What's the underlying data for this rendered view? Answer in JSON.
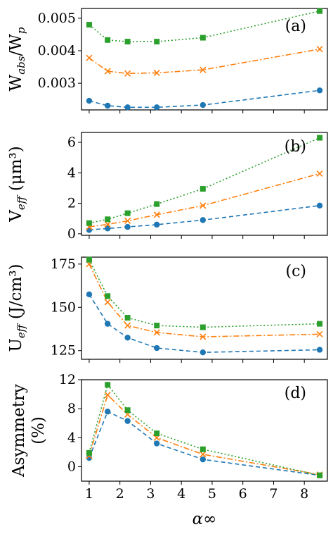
{
  "chart_data": [
    {
      "type": "line",
      "panel_label": "(a)",
      "ylabel": {
        "main": "W",
        "sub1": "abs",
        "mid": "/W",
        "sub2": "p",
        "tail": ""
      },
      "xlim": [
        0.75,
        8.75
      ],
      "ylim": [
        0.00218,
        0.0053
      ],
      "yticks": [
        0.003,
        0.004,
        0.005
      ],
      "ytick_labels": [
        "0.003",
        "0.004",
        "0.005"
      ],
      "xticks": [
        1,
        2,
        3,
        4,
        5,
        6,
        7,
        8
      ],
      "x": [
        1,
        1.6,
        2.25,
        3.2,
        4.7,
        8.5
      ],
      "series": [
        {
          "color": "#1f77b4",
          "marker": "circle",
          "dash": "6,4",
          "values": [
            0.00246,
            0.00231,
            0.00226,
            0.00226,
            0.00233,
            0.00278
          ]
        },
        {
          "color": "#ff7f0e",
          "marker": "x",
          "dash": "8,3,2,3",
          "values": [
            0.00378,
            0.00337,
            0.0033,
            0.00332,
            0.00341,
            0.00405
          ]
        },
        {
          "color": "#2ca02c",
          "marker": "square",
          "dash": "2,3",
          "values": [
            0.0048,
            0.00433,
            0.00428,
            0.00428,
            0.0044,
            0.00522
          ]
        }
      ]
    },
    {
      "type": "line",
      "panel_label": "(b)",
      "ylabel": {
        "main": "V",
        "sub1": "eff",
        "mid": "",
        "sub2": "",
        "tail": " (μm³)"
      },
      "xlim": [
        0.75,
        8.75
      ],
      "ylim": [
        -0.1,
        6.65
      ],
      "yticks": [
        0,
        2,
        4,
        6
      ],
      "ytick_labels": [
        "0",
        "2",
        "4",
        "6"
      ],
      "xticks": [
        1,
        2,
        3,
        4,
        5,
        6,
        7,
        8
      ],
      "x": [
        1,
        1.6,
        2.25,
        3.2,
        4.7,
        8.5
      ],
      "series": [
        {
          "color": "#1f77b4",
          "marker": "circle",
          "dash": "6,4",
          "values": [
            0.25,
            0.35,
            0.45,
            0.6,
            0.9,
            1.85
          ]
        },
        {
          "color": "#ff7f0e",
          "marker": "x",
          "dash": "8,3,2,3",
          "values": [
            0.45,
            0.62,
            0.85,
            1.25,
            1.85,
            3.95
          ]
        },
        {
          "color": "#2ca02c",
          "marker": "square",
          "dash": "2,3",
          "values": [
            0.7,
            0.95,
            1.35,
            1.95,
            2.95,
            6.3
          ]
        }
      ]
    },
    {
      "type": "line",
      "panel_label": "(c)",
      "ylabel": {
        "main": "U",
        "sub1": "eff",
        "mid": "",
        "sub2": "",
        "tail": " (J/cm³)"
      },
      "xlim": [
        0.75,
        8.75
      ],
      "ylim": [
        120,
        179
      ],
      "yticks": [
        125,
        150,
        175
      ],
      "ytick_labels": [
        "125",
        "150",
        "175"
      ],
      "xticks": [
        1,
        2,
        3,
        4,
        5,
        6,
        7,
        8
      ],
      "x": [
        1,
        1.6,
        2.25,
        3.2,
        4.7,
        8.5
      ],
      "series": [
        {
          "color": "#1f77b4",
          "marker": "circle",
          "dash": "6,4",
          "values": [
            157.5,
            140.5,
            132.5,
            126.5,
            124,
            125.5
          ]
        },
        {
          "color": "#ff7f0e",
          "marker": "x",
          "dash": "8,3,2,3",
          "values": [
            175,
            153,
            139.5,
            135.5,
            133,
            134.5
          ]
        },
        {
          "color": "#2ca02c",
          "marker": "square",
          "dash": "2,3",
          "values": [
            177.5,
            156.5,
            144,
            139.5,
            138.5,
            140.5
          ]
        }
      ]
    },
    {
      "type": "line",
      "panel_label": "(d)",
      "ylabel": {
        "line1": "Asymmetry",
        "line2": "(%)"
      },
      "xlabel": "α∞",
      "xlim": [
        0.75,
        8.75
      ],
      "ylim": [
        -2,
        12
      ],
      "yticks": [
        0,
        4,
        8,
        12
      ],
      "ytick_labels": [
        "0",
        "4",
        "8",
        "12"
      ],
      "xticks": [
        1,
        2,
        3,
        4,
        5,
        6,
        7,
        8
      ],
      "xtick_labels": [
        "1",
        "2",
        "3",
        "4",
        "5",
        "6",
        "7",
        "8"
      ],
      "x": [
        1,
        1.6,
        2.25,
        3.2,
        4.7,
        8.5
      ],
      "series": [
        {
          "color": "#1f77b4",
          "marker": "circle",
          "dash": "6,4",
          "values": [
            1.2,
            7.6,
            6.3,
            3.2,
            1.0,
            -1.2
          ]
        },
        {
          "color": "#ff7f0e",
          "marker": "x",
          "dash": "8,3,2,3",
          "values": [
            1.5,
            9.9,
            7.2,
            4.0,
            1.7,
            -1.1
          ]
        },
        {
          "color": "#2ca02c",
          "marker": "square",
          "dash": "2,3",
          "values": [
            1.9,
            11.3,
            7.8,
            4.6,
            2.4,
            -1.2
          ]
        }
      ]
    }
  ]
}
